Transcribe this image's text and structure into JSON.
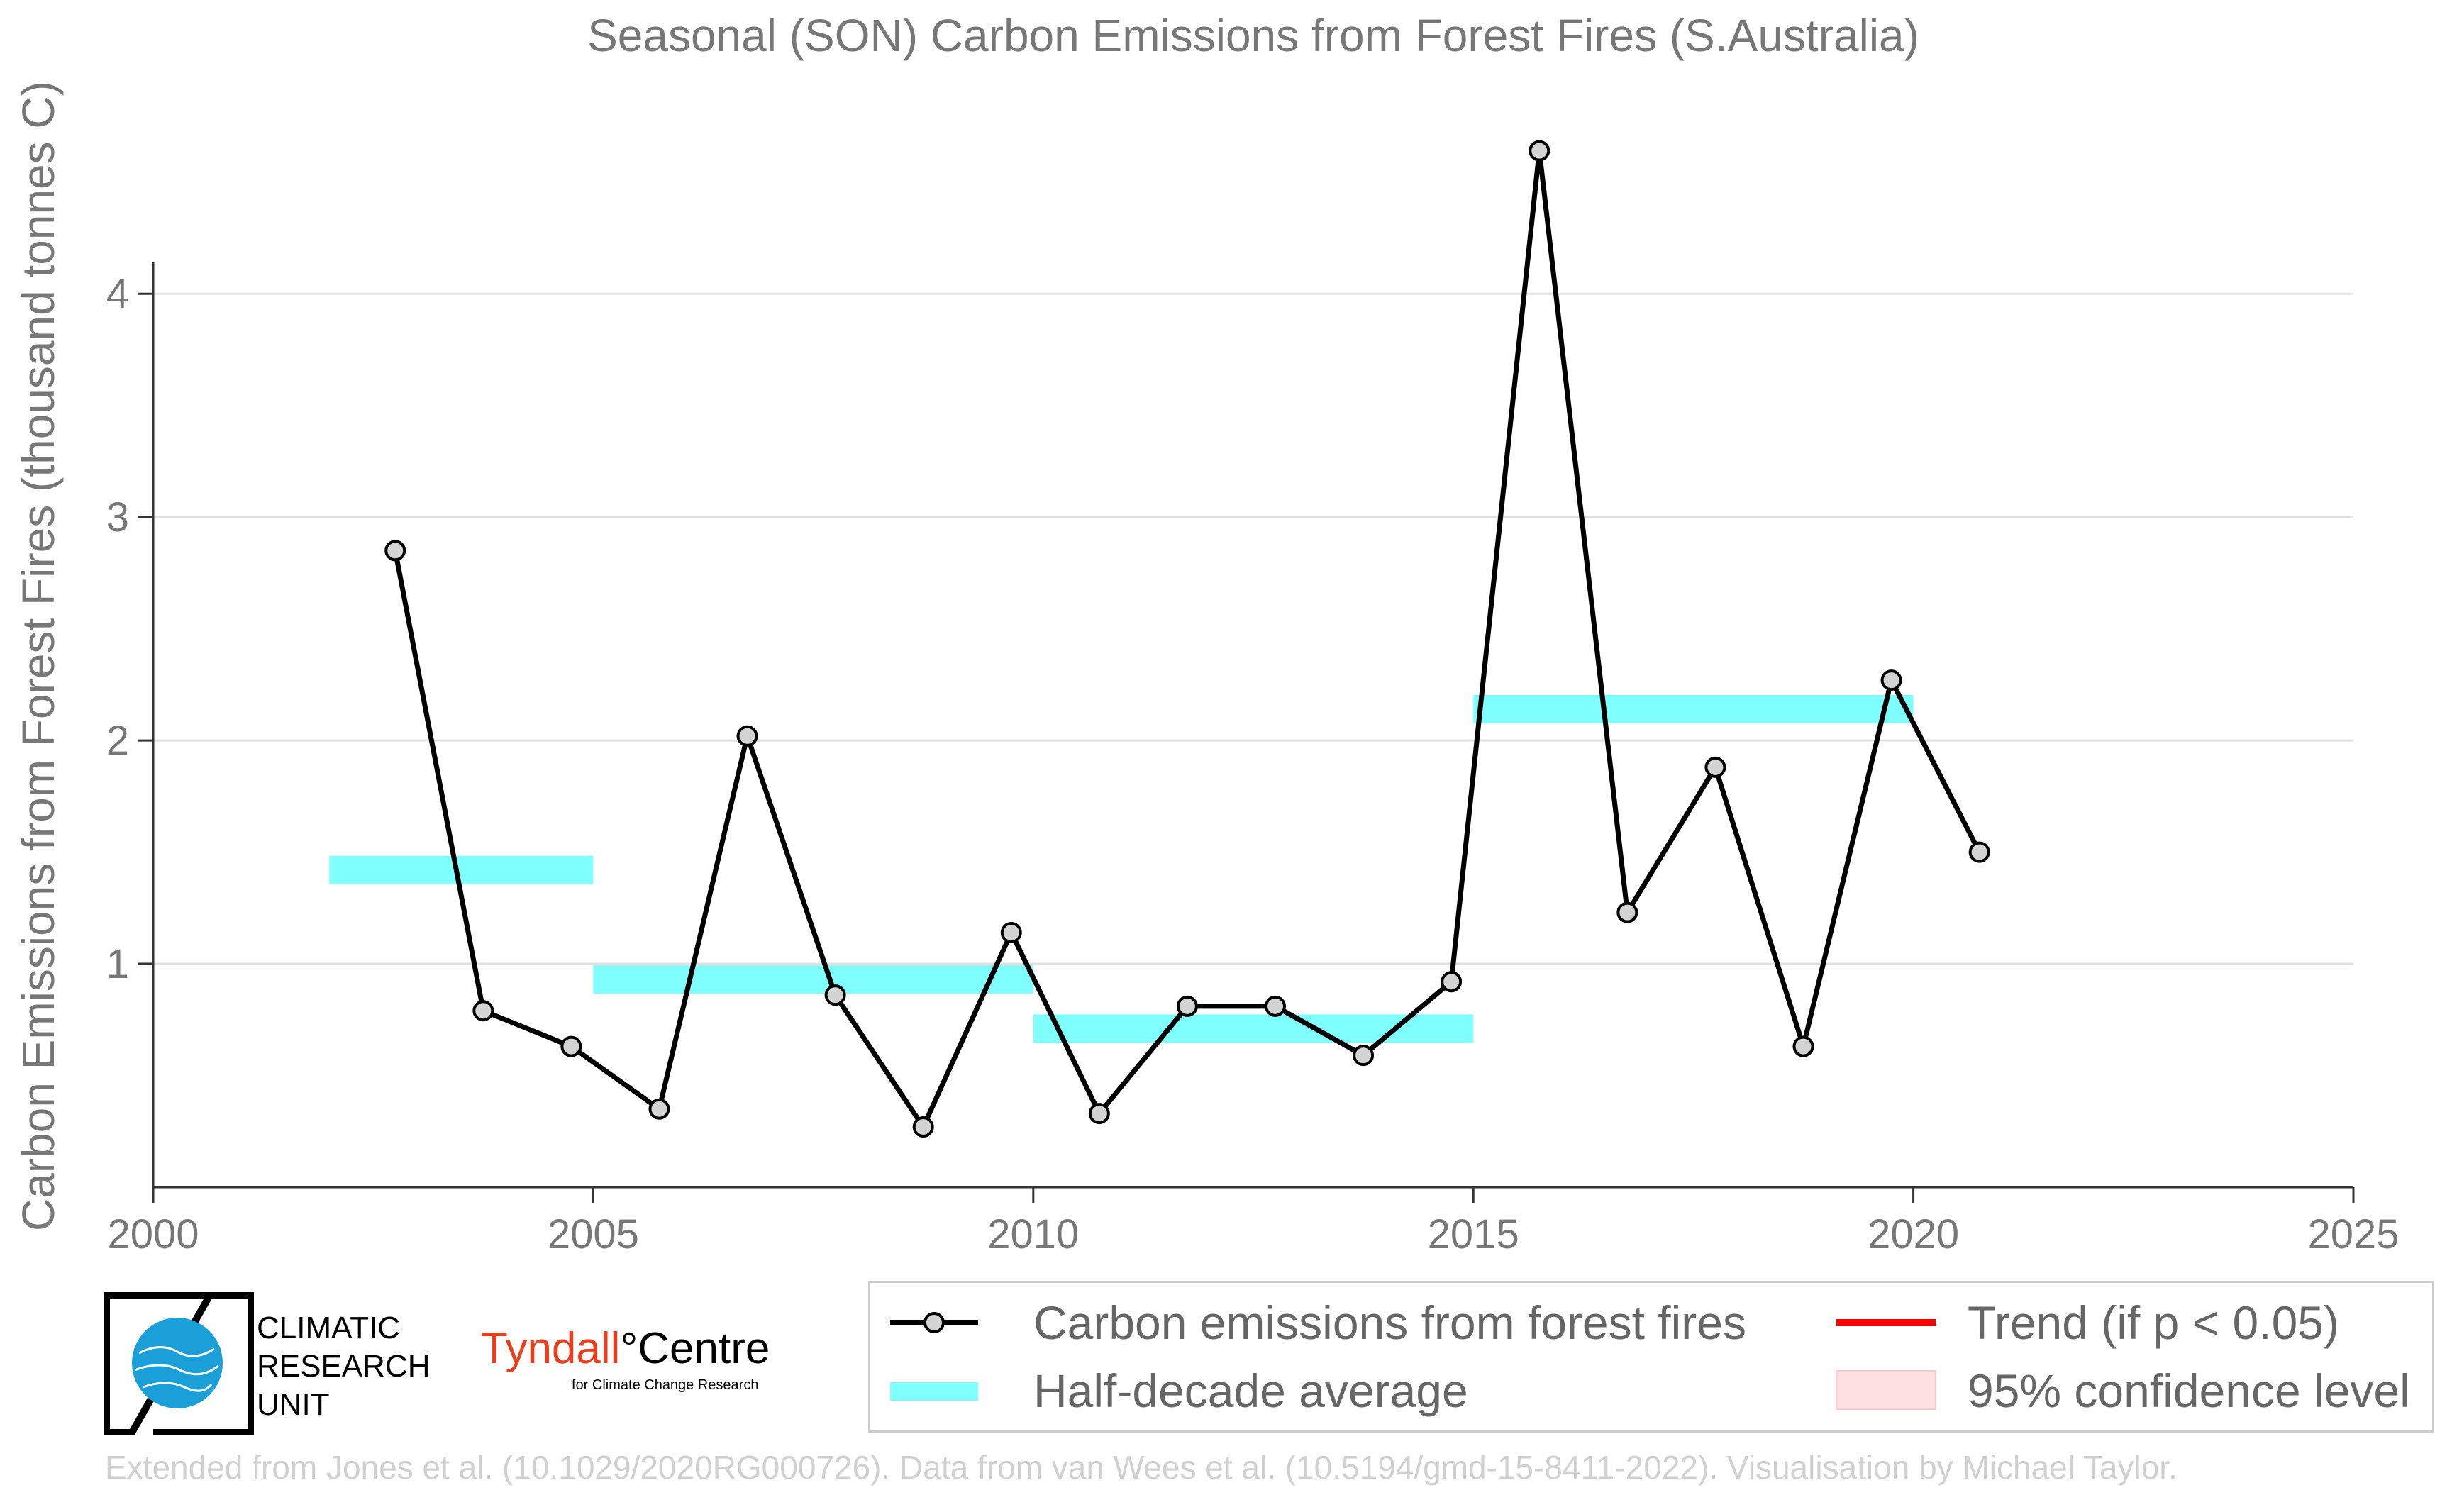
{
  "chart_data": {
    "type": "line",
    "title": "Seasonal (SON) Carbon Emissions from Forest Fires (S.Australia)",
    "xlabel": "",
    "ylabel": "Carbon Emissions from Forest Fires (thousand tonnes C)",
    "xlim": [
      2000,
      2025
    ],
    "ylim": [
      0,
      4.95
    ],
    "x_ticks": [
      "2000",
      "2005",
      "2010",
      "2015",
      "2020",
      "2025"
    ],
    "x_tick_values": [
      2000,
      2005,
      2010,
      2015,
      2020,
      2025
    ],
    "y_ticks": [
      "1",
      "2",
      "3",
      "4"
    ],
    "y_tick_values": [
      1,
      2,
      3,
      4
    ],
    "grid": "horizontal",
    "series": [
      {
        "name": "Carbon emissions from forest fires",
        "color": "#000000",
        "marker_fill": "#d3d3d3",
        "x": [
          2002.75,
          2003.75,
          2004.75,
          2005.75,
          2006.75,
          2007.75,
          2008.75,
          2009.75,
          2010.75,
          2011.75,
          2012.75,
          2013.75,
          2014.75,
          2015.75,
          2016.75,
          2017.75,
          2018.75,
          2019.75,
          2020.75
        ],
        "y": [
          2.85,
          0.79,
          0.63,
          0.35,
          2.02,
          0.86,
          0.27,
          1.14,
          0.33,
          0.81,
          0.81,
          0.59,
          0.92,
          4.64,
          1.23,
          1.88,
          0.63,
          2.27,
          1.5
        ]
      }
    ],
    "half_decade_averages": {
      "name": "Half-decade average",
      "color": "#80ffff",
      "segments": [
        {
          "x0": 2002,
          "x1": 2005,
          "value": 1.42
        },
        {
          "x0": 2005,
          "x1": 2010,
          "value": 0.93
        },
        {
          "x0": 2010,
          "x1": 2015,
          "value": 0.71
        },
        {
          "x0": 2015,
          "x1": 2020,
          "value": 2.14
        }
      ]
    },
    "legend": {
      "placement": "bottom-right",
      "entries": [
        {
          "label": "Carbon emissions from forest fires",
          "kind": "line-marker",
          "color": "#000000"
        },
        {
          "label": "Half-decade average",
          "kind": "band",
          "color": "#80ffff"
        },
        {
          "label": "Trend (if p < 0.05)",
          "kind": "line",
          "color": "#ff0000"
        },
        {
          "label": "95% confidence level",
          "kind": "patch",
          "color": "#ffe0e0"
        }
      ]
    }
  },
  "logos": {
    "cru_lines": [
      "CLIMATIC",
      "RESEARCH",
      "UNIT"
    ],
    "tyndall_name": "Tyndall",
    "tyndall_degree": "°",
    "tyndall_centre": "Centre",
    "tyndall_sub": "for Climate Change Research"
  },
  "footer": "Extended from Jones et al. (10.1029/2020RG000726). Data from van Wees et al. (10.5194/gmd-15-8411-2022). Visualisation by Michael Taylor."
}
